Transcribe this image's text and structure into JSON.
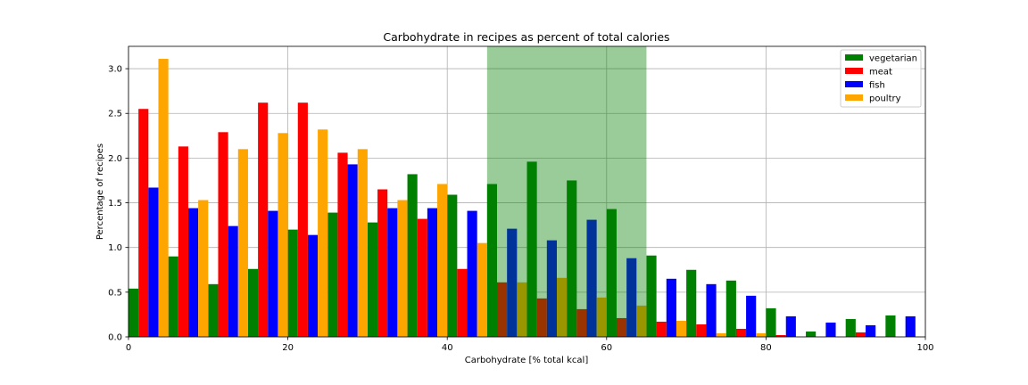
{
  "chart_data": {
    "type": "bar",
    "title": "Carbohydrate in recipes as percent of total calories",
    "xlabel": "Carbohydrate [% total kcal]",
    "ylabel": "Percentage of recipes",
    "xlim": [
      0,
      100
    ],
    "ylim": [
      0,
      3.25
    ],
    "xticks": [
      "0",
      "20",
      "40",
      "60",
      "80",
      "100"
    ],
    "yticks": [
      "0.0",
      "0.5",
      "1.0",
      "1.5",
      "2.0",
      "2.5",
      "3.0"
    ],
    "grid": true,
    "legend_position": "top-right",
    "bin_width": 5,
    "x": [
      0,
      5,
      10,
      15,
      20,
      25,
      30,
      35,
      40,
      45,
      50,
      55,
      60,
      65,
      70,
      75,
      80,
      85,
      90,
      95
    ],
    "series": [
      {
        "name": "vegetarian",
        "color": "#008000",
        "values": [
          0.54,
          0.9,
          0.59,
          0.76,
          1.2,
          1.39,
          1.28,
          1.82,
          1.59,
          1.71,
          1.96,
          1.75,
          1.43,
          0.91,
          0.75,
          0.63,
          0.32,
          0.06,
          0.2,
          0.24
        ]
      },
      {
        "name": "meat",
        "color": "#ff0000",
        "values": [
          2.55,
          2.13,
          2.29,
          2.62,
          2.62,
          2.06,
          1.65,
          1.32,
          0.76,
          0.61,
          0.43,
          0.31,
          0.21,
          0.17,
          0.14,
          0.09,
          0.02,
          0.0,
          0.05,
          0.0
        ]
      },
      {
        "name": "fish",
        "color": "#0000ff",
        "values": [
          1.67,
          1.44,
          1.24,
          1.41,
          1.14,
          1.93,
          1.44,
          1.44,
          1.41,
          1.21,
          1.08,
          1.31,
          0.88,
          0.65,
          0.59,
          0.46,
          0.23,
          0.16,
          0.13,
          0.23
        ]
      },
      {
        "name": "poultry",
        "color": "#ffa500",
        "values": [
          3.11,
          1.53,
          2.1,
          2.28,
          2.32,
          2.1,
          1.53,
          1.71,
          1.05,
          0.61,
          0.66,
          0.44,
          0.35,
          0.18,
          0.04,
          0.04,
          0.0,
          0.0,
          0.0,
          0.0
        ]
      }
    ],
    "highlight_span": {
      "from": 45,
      "to": 65,
      "color": "#008000",
      "opacity": 0.4
    }
  }
}
